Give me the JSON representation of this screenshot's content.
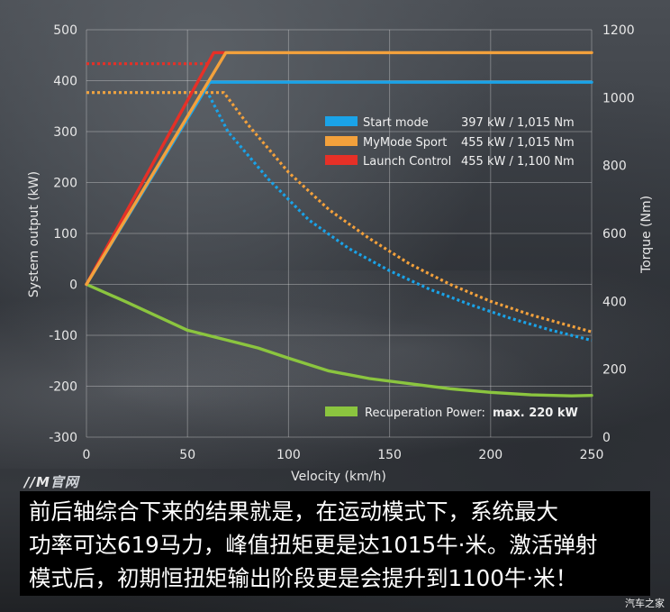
{
  "chart_data": {
    "type": "line",
    "xlabel": "Velocity (km/h)",
    "ylabel_left": "System output (kW)",
    "ylabel_right": "Torque (Nm)",
    "xlim": [
      0,
      250
    ],
    "ylim_left": [
      -300,
      500
    ],
    "ylim_right": [
      0,
      1200
    ],
    "x_ticks": [
      "0",
      "50",
      "100",
      "150",
      "200",
      "250"
    ],
    "y_ticks_left": [
      "500",
      "400",
      "300",
      "200",
      "100",
      "0",
      "-100",
      "-200",
      "-300"
    ],
    "y_ticks_right": [
      "1200",
      "1000",
      "800",
      "600",
      "400",
      "200",
      "0"
    ],
    "grid": true,
    "legend_position": "upper-right",
    "legend": [
      {
        "label": "Start mode",
        "value": "397 kW / 1,015 Nm",
        "color": "#1aa3e8"
      },
      {
        "label": "MyMode Sport",
        "value": "455 kW / 1,015 Nm",
        "color": "#f3a13c"
      },
      {
        "label": "Launch Control",
        "value": "455 kW / 1,100 Nm",
        "color": "#e63027"
      }
    ],
    "recuperation_label": "Recuperation Power:",
    "recuperation_value": "max. 220 kW",
    "series": [
      {
        "legend_index": 0,
        "kind": "power",
        "color": "#1aa3e8",
        "x": [
          0,
          61,
          250
        ],
        "y": [
          0,
          397,
          397
        ]
      },
      {
        "legend_index": 1,
        "kind": "power",
        "color": "#f3a13c",
        "x": [
          0,
          69,
          250
        ],
        "y": [
          0,
          455,
          455
        ]
      },
      {
        "legend_index": 2,
        "kind": "power",
        "color": "#e63027",
        "x": [
          0,
          63,
          69
        ],
        "y": [
          0,
          455,
          455
        ]
      },
      {
        "legend_index": 0,
        "kind": "torque",
        "color": "#1aa3e8",
        "style": "dotted",
        "x": [
          0,
          60,
          70,
          90,
          110,
          130,
          150,
          170,
          190,
          210,
          230,
          250
        ],
        "y": [
          1015,
          1015,
          900,
          760,
          640,
          555,
          490,
          435,
          390,
          350,
          315,
          285
        ]
      },
      {
        "legend_index": 1,
        "kind": "torque",
        "color": "#f3a13c",
        "style": "dotted",
        "x": [
          0,
          68,
          80,
          100,
          120,
          140,
          160,
          180,
          200,
          220,
          250
        ],
        "y": [
          1015,
          1015,
          920,
          780,
          670,
          585,
          510,
          450,
          400,
          360,
          310
        ]
      },
      {
        "legend_index": 2,
        "kind": "torque",
        "color": "#e63027",
        "style": "dotted",
        "x": [
          0,
          61
        ],
        "y": [
          1100,
          1100
        ]
      },
      {
        "kind": "power",
        "color": "#8bc53f",
        "style": "solid",
        "name_ref": "recuperation",
        "x": [
          0,
          20,
          50,
          70,
          85,
          100,
          120,
          140,
          160,
          180,
          200,
          220,
          240,
          250
        ],
        "y": [
          0,
          -35,
          -90,
          -110,
          -125,
          -145,
          -170,
          -185,
          -195,
          -205,
          -212,
          -217,
          -219,
          -218
        ]
      }
    ]
  },
  "caption": "前后轴综合下来的结果就是，在运动模式下，系统最大\n功率可达619马力，峰值扭矩更是达1015牛·米。激活弹射\n模式后，初期恒扭矩输出阶段更是会提升到1100牛·米！",
  "brand": {
    "prefix": "//M",
    "suffix": "官网"
  },
  "watermark": "汽车之家"
}
